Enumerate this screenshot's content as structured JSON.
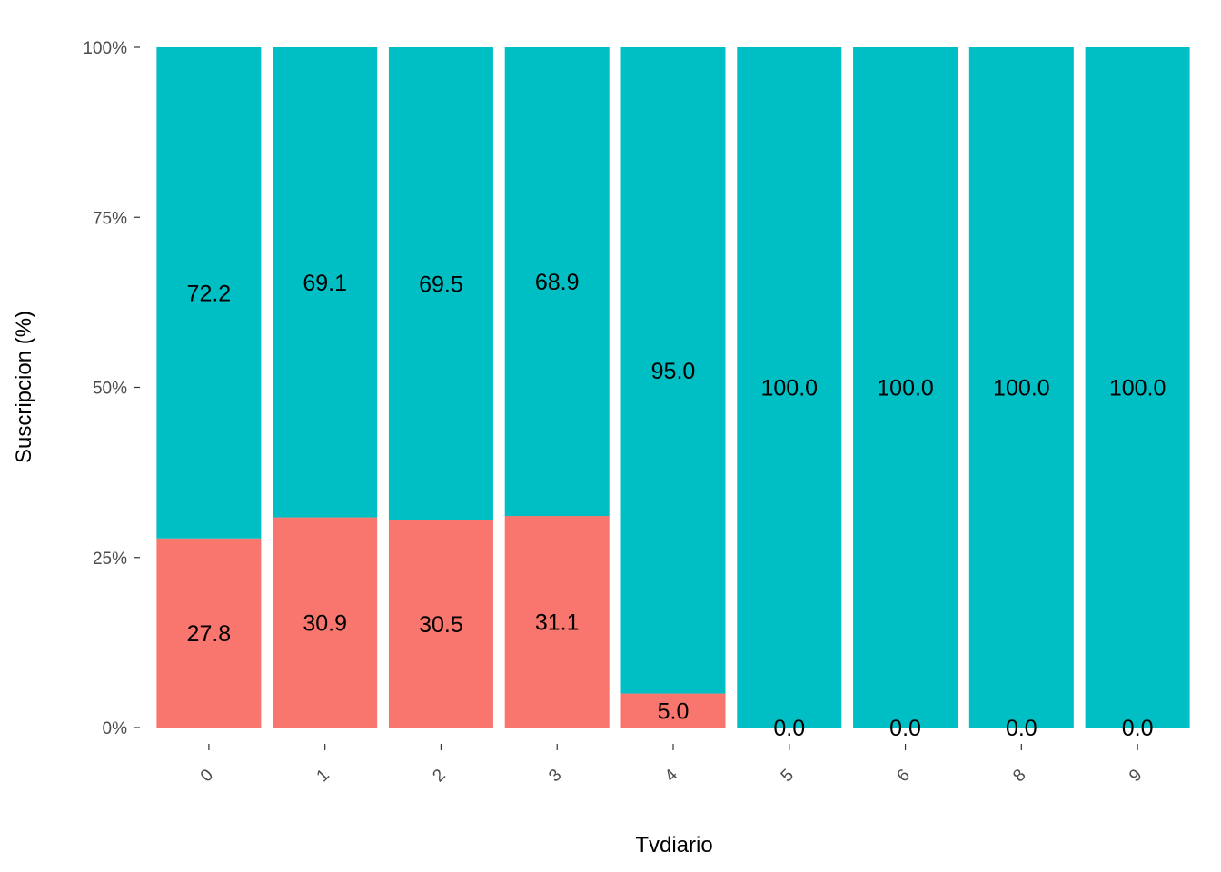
{
  "chart_data": {
    "type": "bar",
    "stacked": true,
    "normalized": true,
    "xlabel": "Tvdiario",
    "ylabel": "Suscripcion  (%)",
    "categories": [
      "0",
      "1",
      "2",
      "3",
      "4",
      "5",
      "6",
      "8",
      "9"
    ],
    "ylim": [
      0,
      100
    ],
    "yticks": [
      "0%",
      "25%",
      "50%",
      "75%",
      "100%"
    ],
    "ytick_values": [
      0,
      25,
      50,
      75,
      100
    ],
    "grid": false,
    "legend": "none",
    "series": [
      {
        "color": "#F8766D",
        "values": [
          27.8,
          30.9,
          30.5,
          31.1,
          5.0,
          0.0,
          0.0,
          0.0,
          0.0
        ],
        "labels": [
          "27.8",
          "30.9",
          "30.5",
          "31.1",
          "5.0",
          "0.0",
          "0.0",
          "0.0",
          "0.0"
        ]
      },
      {
        "color": "#00BFC4",
        "values": [
          72.2,
          69.1,
          69.5,
          68.9,
          95.0,
          100.0,
          100.0,
          100.0,
          100.0
        ],
        "labels": [
          "72.2",
          "69.1",
          "69.5",
          "68.9",
          "95.0",
          "100.0",
          "100.0",
          "100.0",
          "100.0"
        ]
      }
    ]
  }
}
